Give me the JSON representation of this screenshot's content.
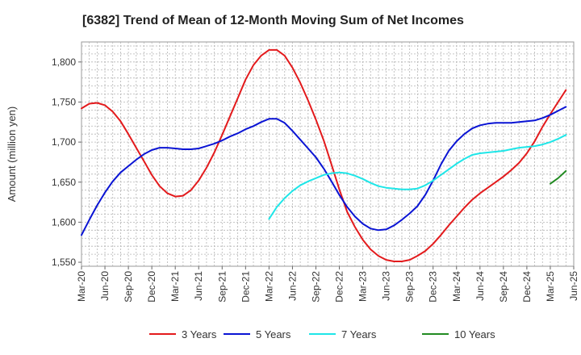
{
  "chart_data": {
    "type": "line",
    "title": "[6382]  Trend of Mean of 12-Month Moving Sum of Net Incomes",
    "ylabel": "Amount (million yen)",
    "xlabel": "",
    "ylim": [
      1545,
      1825
    ],
    "yticks": [
      1550,
      1600,
      1650,
      1700,
      1750,
      1800
    ],
    "ytick_labels": [
      "1,550",
      "1,600",
      "1,650",
      "1,700",
      "1,750",
      "1,800"
    ],
    "x_start": "2020-03",
    "x_end": "2025-06",
    "x_ticks": [
      "2020-03",
      "2020-06",
      "2020-09",
      "2020-12",
      "2021-03",
      "2021-06",
      "2021-09",
      "2021-12",
      "2022-03",
      "2022-06",
      "2022-09",
      "2022-12",
      "2023-03",
      "2023-06",
      "2023-09",
      "2023-12",
      "2024-03",
      "2024-06",
      "2024-09",
      "2024-12",
      "2025-03",
      "2025-06"
    ],
    "x_tick_labels": [
      "Mar-20",
      "Jun-20",
      "Sep-20",
      "Dec-20",
      "Mar-21",
      "Jun-21",
      "Sep-21",
      "Dec-21",
      "Mar-22",
      "Jun-22",
      "Sep-22",
      "Dec-22",
      "Mar-23",
      "Jun-23",
      "Sep-23",
      "Dec-23",
      "Mar-24",
      "Jun-24",
      "Sep-24",
      "Dec-24",
      "Mar-25",
      "Jun-25"
    ],
    "grid": true,
    "legend_position": "bottom",
    "series": [
      {
        "name": "3 Years",
        "color": "#e31a1c",
        "points": [
          [
            "2020-03",
            1742
          ],
          [
            "2020-04",
            1748
          ],
          [
            "2020-05",
            1749
          ],
          [
            "2020-06",
            1746
          ],
          [
            "2020-07",
            1738
          ],
          [
            "2020-08",
            1726
          ],
          [
            "2020-09",
            1710
          ],
          [
            "2020-10",
            1693
          ],
          [
            "2020-11",
            1676
          ],
          [
            "2020-12",
            1659
          ],
          [
            "2021-01",
            1645
          ],
          [
            "2021-02",
            1636
          ],
          [
            "2021-03",
            1632
          ],
          [
            "2021-04",
            1633
          ],
          [
            "2021-05",
            1640
          ],
          [
            "2021-06",
            1652
          ],
          [
            "2021-07",
            1668
          ],
          [
            "2021-08",
            1687
          ],
          [
            "2021-09",
            1709
          ],
          [
            "2021-10",
            1732
          ],
          [
            "2021-11",
            1755
          ],
          [
            "2021-12",
            1778
          ],
          [
            "2022-01",
            1796
          ],
          [
            "2022-02",
            1808
          ],
          [
            "2022-03",
            1815
          ],
          [
            "2022-04",
            1815
          ],
          [
            "2022-05",
            1808
          ],
          [
            "2022-06",
            1793
          ],
          [
            "2022-07",
            1774
          ],
          [
            "2022-08",
            1752
          ],
          [
            "2022-09",
            1728
          ],
          [
            "2022-10",
            1702
          ],
          [
            "2022-11",
            1672
          ],
          [
            "2022-12",
            1641
          ],
          [
            "2023-01",
            1613
          ],
          [
            "2023-02",
            1594
          ],
          [
            "2023-03",
            1578
          ],
          [
            "2023-04",
            1566
          ],
          [
            "2023-05",
            1558
          ],
          [
            "2023-06",
            1553
          ],
          [
            "2023-07",
            1551
          ],
          [
            "2023-08",
            1551
          ],
          [
            "2023-09",
            1553
          ],
          [
            "2023-10",
            1558
          ],
          [
            "2023-11",
            1564
          ],
          [
            "2023-12",
            1573
          ],
          [
            "2024-01",
            1584
          ],
          [
            "2024-02",
            1596
          ],
          [
            "2024-03",
            1607
          ],
          [
            "2024-04",
            1618
          ],
          [
            "2024-05",
            1628
          ],
          [
            "2024-06",
            1636
          ],
          [
            "2024-07",
            1643
          ],
          [
            "2024-08",
            1650
          ],
          [
            "2024-09",
            1657
          ],
          [
            "2024-10",
            1665
          ],
          [
            "2024-11",
            1674
          ],
          [
            "2024-12",
            1686
          ],
          [
            "2025-01",
            1701
          ],
          [
            "2025-02",
            1719
          ],
          [
            "2025-03",
            1735
          ],
          [
            "2025-04",
            1750
          ],
          [
            "2025-05",
            1765
          ]
        ]
      },
      {
        "name": "5 Years",
        "color": "#0a14d4",
        "points": [
          [
            "2020-03",
            1584
          ],
          [
            "2020-04",
            1603
          ],
          [
            "2020-05",
            1621
          ],
          [
            "2020-06",
            1637
          ],
          [
            "2020-07",
            1651
          ],
          [
            "2020-08",
            1662
          ],
          [
            "2020-09",
            1670
          ],
          [
            "2020-10",
            1678
          ],
          [
            "2020-11",
            1685
          ],
          [
            "2020-12",
            1690
          ],
          [
            "2021-01",
            1693
          ],
          [
            "2021-02",
            1693
          ],
          [
            "2021-03",
            1692
          ],
          [
            "2021-04",
            1691
          ],
          [
            "2021-05",
            1691
          ],
          [
            "2021-06",
            1692
          ],
          [
            "2021-07",
            1695
          ],
          [
            "2021-08",
            1698
          ],
          [
            "2021-09",
            1702
          ],
          [
            "2021-10",
            1707
          ],
          [
            "2021-11",
            1711
          ],
          [
            "2021-12",
            1716
          ],
          [
            "2022-01",
            1720
          ],
          [
            "2022-02",
            1725
          ],
          [
            "2022-03",
            1729
          ],
          [
            "2022-04",
            1729
          ],
          [
            "2022-05",
            1724
          ],
          [
            "2022-06",
            1714
          ],
          [
            "2022-07",
            1703
          ],
          [
            "2022-08",
            1692
          ],
          [
            "2022-09",
            1681
          ],
          [
            "2022-10",
            1667
          ],
          [
            "2022-11",
            1651
          ],
          [
            "2022-12",
            1634
          ],
          [
            "2023-01",
            1619
          ],
          [
            "2023-02",
            1607
          ],
          [
            "2023-03",
            1598
          ],
          [
            "2023-04",
            1592
          ],
          [
            "2023-05",
            1590
          ],
          [
            "2023-06",
            1591
          ],
          [
            "2023-07",
            1596
          ],
          [
            "2023-08",
            1603
          ],
          [
            "2023-09",
            1611
          ],
          [
            "2023-10",
            1620
          ],
          [
            "2023-11",
            1634
          ],
          [
            "2023-12",
            1652
          ],
          [
            "2024-01",
            1672
          ],
          [
            "2024-02",
            1689
          ],
          [
            "2024-03",
            1701
          ],
          [
            "2024-04",
            1710
          ],
          [
            "2024-05",
            1717
          ],
          [
            "2024-06",
            1721
          ],
          [
            "2024-07",
            1723
          ],
          [
            "2024-08",
            1724
          ],
          [
            "2024-09",
            1724
          ],
          [
            "2024-10",
            1724
          ],
          [
            "2024-11",
            1725
          ],
          [
            "2024-12",
            1726
          ],
          [
            "2025-01",
            1727
          ],
          [
            "2025-02",
            1730
          ],
          [
            "2025-03",
            1734
          ],
          [
            "2025-04",
            1739
          ],
          [
            "2025-05",
            1744
          ]
        ]
      },
      {
        "name": "7 Years",
        "color": "#1ee6e8",
        "points": [
          [
            "2022-03",
            1604
          ],
          [
            "2022-04",
            1619
          ],
          [
            "2022-05",
            1630
          ],
          [
            "2022-06",
            1639
          ],
          [
            "2022-07",
            1646
          ],
          [
            "2022-08",
            1651
          ],
          [
            "2022-09",
            1655
          ],
          [
            "2022-10",
            1659
          ],
          [
            "2022-11",
            1661
          ],
          [
            "2022-12",
            1662
          ],
          [
            "2023-01",
            1661
          ],
          [
            "2023-02",
            1658
          ],
          [
            "2023-03",
            1654
          ],
          [
            "2023-04",
            1649
          ],
          [
            "2023-05",
            1645
          ],
          [
            "2023-06",
            1643
          ],
          [
            "2023-07",
            1642
          ],
          [
            "2023-08",
            1641
          ],
          [
            "2023-09",
            1641
          ],
          [
            "2023-10",
            1642
          ],
          [
            "2023-11",
            1646
          ],
          [
            "2023-12",
            1652
          ],
          [
            "2024-01",
            1659
          ],
          [
            "2024-02",
            1666
          ],
          [
            "2024-03",
            1673
          ],
          [
            "2024-04",
            1679
          ],
          [
            "2024-05",
            1684
          ],
          [
            "2024-06",
            1686
          ],
          [
            "2024-07",
            1687
          ],
          [
            "2024-08",
            1688
          ],
          [
            "2024-09",
            1689
          ],
          [
            "2024-10",
            1691
          ],
          [
            "2024-11",
            1693
          ],
          [
            "2024-12",
            1694
          ],
          [
            "2025-01",
            1695
          ],
          [
            "2025-02",
            1697
          ],
          [
            "2025-03",
            1700
          ],
          [
            "2025-04",
            1704
          ],
          [
            "2025-05",
            1709
          ]
        ]
      },
      {
        "name": "10 Years",
        "color": "#228b22",
        "points": [
          [
            "2025-03",
            1648
          ],
          [
            "2025-04",
            1655
          ],
          [
            "2025-05",
            1664
          ]
        ]
      }
    ]
  }
}
